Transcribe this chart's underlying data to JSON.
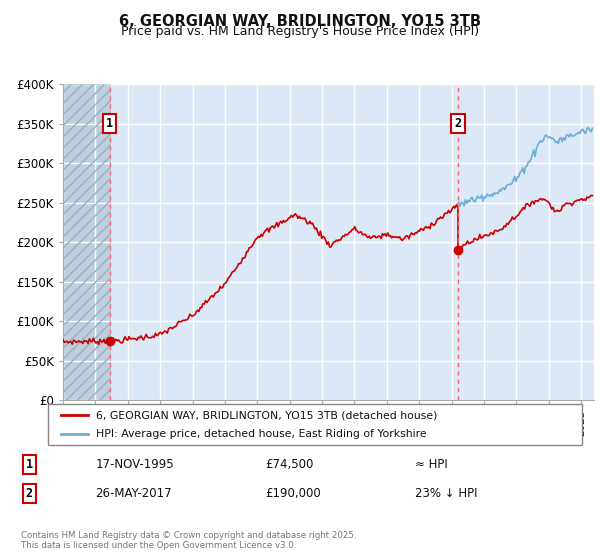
{
  "title_line1": "6, GEORGIAN WAY, BRIDLINGTON, YO15 3TB",
  "title_line2": "Price paid vs. HM Land Registry's House Price Index (HPI)",
  "ylim": [
    0,
    400000
  ],
  "yticks": [
    0,
    50000,
    100000,
    150000,
    200000,
    250000,
    300000,
    350000,
    400000
  ],
  "ytick_labels": [
    "£0",
    "£50K",
    "£100K",
    "£150K",
    "£200K",
    "£250K",
    "£300K",
    "£350K",
    "£400K"
  ],
  "hpi_color": "#6baed6",
  "price_color": "#cc0000",
  "marker_color": "#cc0000",
  "vline_color": "#ff6666",
  "sale1_date_num": 1995.88,
  "sale1_price": 74500,
  "sale2_date_num": 2017.4,
  "sale2_price": 190000,
  "legend_label1": "6, GEORGIAN WAY, BRIDLINGTON, YO15 3TB (detached house)",
  "legend_label2": "HPI: Average price, detached house, East Riding of Yorkshire",
  "table_row1": [
    "1",
    "17-NOV-1995",
    "£74,500",
    "≈ HPI"
  ],
  "table_row2": [
    "2",
    "26-MAY-2017",
    "£190,000",
    "23% ↓ HPI"
  ],
  "footer": "Contains HM Land Registry data © Crown copyright and database right 2025.\nThis data is licensed under the Open Government Licence v3.0.",
  "bg_color": "#dce8f5",
  "grid_color": "#ffffff",
  "hatch_bg": "#c8d8e8",
  "xlim_start": 1993.0,
  "xlim_end": 2025.8
}
